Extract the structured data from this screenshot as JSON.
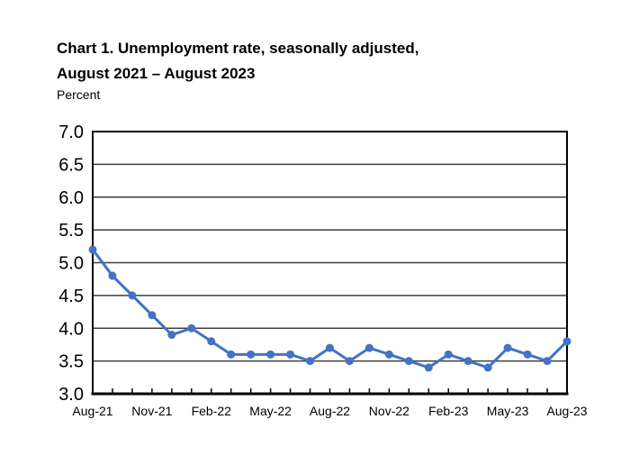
{
  "header": {
    "title_line1": "Chart 1. Unemployment rate, seasonally adjusted,",
    "title_line2": "August 2021 – August 2023",
    "axis_unit_label": "Percent"
  },
  "chart_data": {
    "type": "line",
    "title": "Chart 1. Unemployment rate, seasonally adjusted, August 2021 – August 2023",
    "ylabel": "Percent",
    "xlabel": "",
    "ylim": [
      3.0,
      7.0
    ],
    "grid": true,
    "legend_position": "none",
    "axis_color": "#000000",
    "grid_color": "#3f3f3f",
    "x": [
      "Aug-21",
      "Sep-21",
      "Oct-21",
      "Nov-21",
      "Dec-21",
      "Jan-22",
      "Feb-22",
      "Mar-22",
      "Apr-22",
      "May-22",
      "Jun-22",
      "Jul-22",
      "Aug-22",
      "Sep-22",
      "Oct-22",
      "Nov-22",
      "Dec-22",
      "Jan-23",
      "Feb-23",
      "Mar-23",
      "Apr-23",
      "May-23",
      "Jun-23",
      "Jul-23",
      "Aug-23"
    ],
    "x_tick_labels": [
      "Aug-21",
      "Nov-21",
      "Feb-22",
      "May-22",
      "Aug-22",
      "Nov-22",
      "Feb-23",
      "May-23",
      "Aug-23"
    ],
    "y_tick_labels": [
      "7.0",
      "6.5",
      "6.0",
      "5.5",
      "5.0",
      "4.5",
      "4.0",
      "3.5",
      "3.0"
    ],
    "series": [
      {
        "name": "Unemployment rate, seasonally adjusted",
        "color": "#4472C4",
        "values": [
          5.2,
          4.8,
          4.5,
          4.2,
          3.9,
          4.0,
          3.8,
          3.6,
          3.6,
          3.6,
          3.6,
          3.5,
          3.7,
          3.5,
          3.7,
          3.6,
          3.5,
          3.4,
          3.6,
          3.5,
          3.4,
          3.7,
          3.6,
          3.5,
          3.8
        ]
      }
    ]
  }
}
